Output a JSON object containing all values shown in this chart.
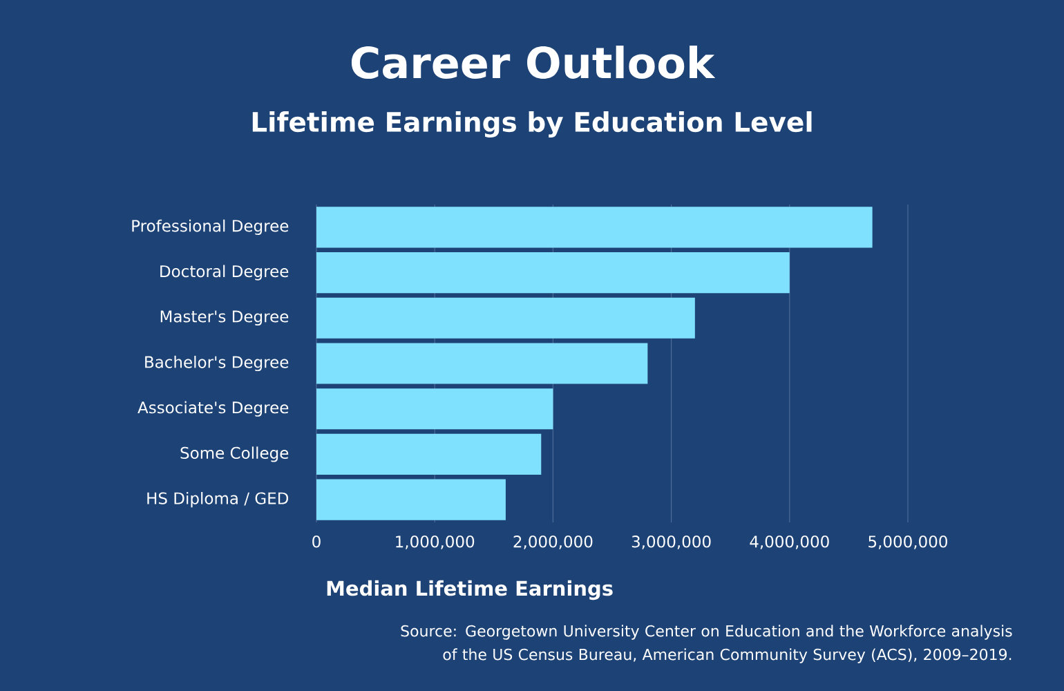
{
  "chart_data": {
    "type": "bar",
    "orientation": "horizontal",
    "title": "Career Outlook",
    "subtitle": "Lifetime Earnings by Education Level",
    "xlabel": "Median Lifetime Earnings",
    "categories": [
      "Professional Degree",
      "Doctoral Degree",
      "Master's Degree",
      "Bachelor's Degree",
      "Associate's Degree",
      "Some College",
      "HS Diploma / GED"
    ],
    "values": [
      4700000,
      4000000,
      3200000,
      2800000,
      2000000,
      1900000,
      1600000
    ],
    "color": "#80e1ff",
    "xlim": [
      0,
      5000000
    ],
    "xticks": [
      0,
      {
        "value": 1000000,
        "label": "1,000,000"
      },
      {
        "value": 2000000,
        "label": "2,000,000"
      },
      {
        "value": 3000000,
        "label": "3,000,000"
      },
      {
        "value": 4000000,
        "label": "4,000,000"
      },
      {
        "value": 5000000,
        "label": "5,000,000"
      }
    ],
    "grid": "x",
    "annotations": [
      "Source: Georgetown University Center on Education and the Workforce analysis of the US Census Bureau, American Community Survey (ACS), 2009–2019."
    ]
  }
}
